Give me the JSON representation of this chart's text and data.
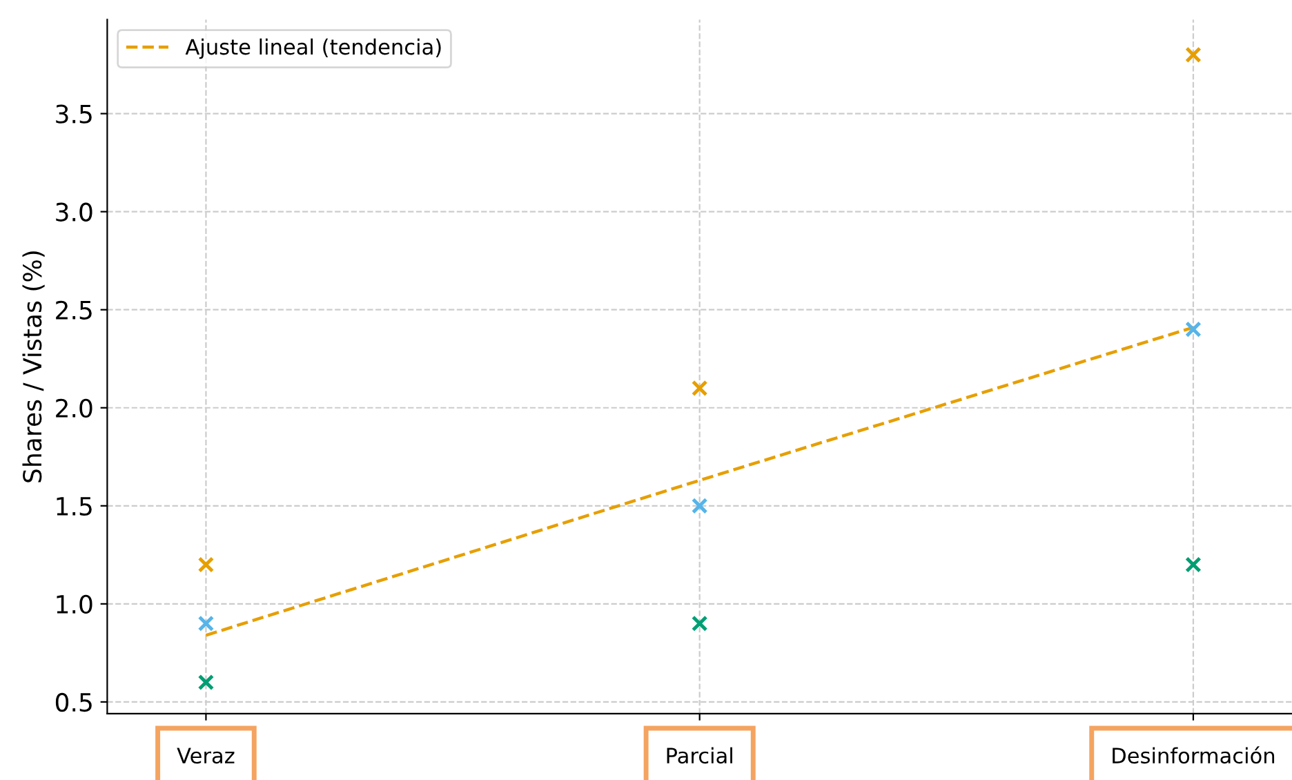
{
  "chart_data": {
    "type": "scatter",
    "ylabel": "Shares / Vistas (%)",
    "categories": [
      "Veraz",
      "Parcial",
      "Desinformación"
    ],
    "series": [
      {
        "color": "#e69f00",
        "marker": "cross",
        "values": [
          1.2,
          2.1,
          3.8
        ]
      },
      {
        "color": "#56b4e9",
        "marker": "cross",
        "values": [
          0.9,
          1.5,
          2.4
        ]
      },
      {
        "color": "#009e73",
        "marker": "cross",
        "values": [
          0.6,
          0.9,
          1.2
        ]
      },
      {
        "name": "Ajuste lineal (tendencia)",
        "type": "line",
        "marker": "none",
        "line_style": "dashed",
        "color": "#e69f00",
        "values": [
          0.84,
          1.63,
          2.41
        ]
      }
    ],
    "ylim": [
      0.44,
      3.98
    ],
    "yticks": [
      0.5,
      {
        "value": 1,
        "label": "1.0"
      },
      1.5,
      {
        "value": 2,
        "label": "2.0"
      },
      2.5,
      {
        "value": 3,
        "label": "3.0"
      },
      3.5
    ],
    "grid": true,
    "legend": "top left"
  }
}
